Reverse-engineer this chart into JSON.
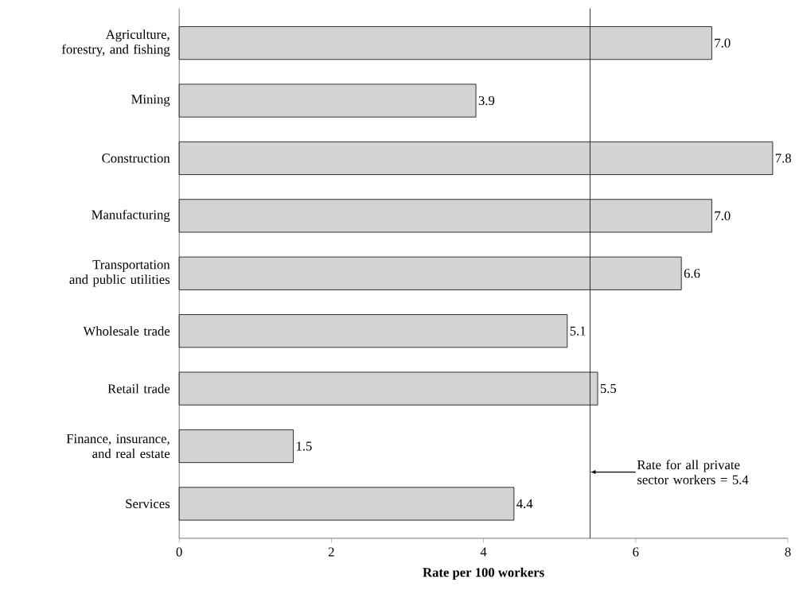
{
  "chart_data": {
    "type": "bar",
    "orientation": "horizontal",
    "xlabel": "Rate per 100 workers",
    "categories": [
      "Agriculture, forestry, and fishing",
      "Mining",
      "Construction",
      "Manufacturing",
      "Transportation and public utilities",
      "Wholesale trade",
      "Retail trade",
      "Finance, insurance, and real estate",
      "Services"
    ],
    "values": [
      7.0,
      3.9,
      7.8,
      7.0,
      6.6,
      5.1,
      5.5,
      1.5,
      4.4
    ],
    "value_labels": [
      "7.0",
      "3.9",
      "7.8",
      "7.0",
      "6.6",
      "5.1",
      "5.5",
      "1.5",
      "4.4"
    ],
    "color": "#d3d3d3",
    "xlim": [
      0,
      8
    ],
    "xticks": [
      0,
      2,
      4,
      6,
      8
    ],
    "ref_lines": [
      {
        "axis": "x",
        "value": 5.4,
        "label": "Rate for all private sector workers = 5.4",
        "color": "#000000"
      }
    ]
  }
}
